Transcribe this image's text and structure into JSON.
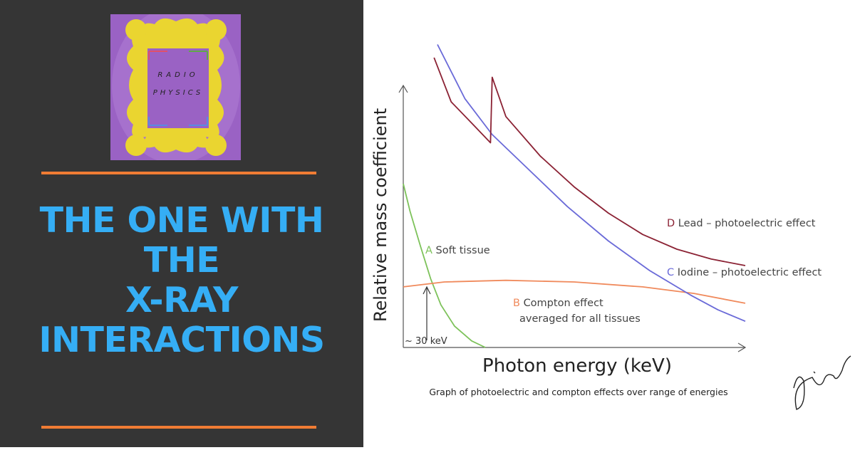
{
  "logo": {
    "line1": "RADIO",
    "line2": "PHYSICS",
    "frame_color": "#ead530",
    "background": "#9a62c4"
  },
  "headline": {
    "lines": [
      "THE ONE WITH",
      "THE",
      "X-RAY",
      "INTERACTIONS"
    ],
    "color": "#35aef5"
  },
  "accent_color": "#f07c34",
  "chart_data": {
    "type": "line",
    "title": "",
    "caption": "Graph of photoelectric and compton effects over range of energies",
    "xlabel": "Photon energy (keV)",
    "ylabel": "Relative mass coefficient",
    "grid": false,
    "annotation": "~ 30 keV",
    "series": [
      {
        "letter": "A",
        "name": "Soft tissue",
        "color": "#7dc25a",
        "points": [
          [
            0,
            1.0
          ],
          [
            0.02,
            0.83
          ],
          [
            0.05,
            0.62
          ],
          [
            0.08,
            0.42
          ],
          [
            0.11,
            0.26
          ],
          [
            0.15,
            0.13
          ],
          [
            0.2,
            0.04
          ],
          [
            0.24,
            0.0
          ]
        ]
      },
      {
        "letter": "B",
        "name": "Compton effect",
        "name2": "averaged for all tissues",
        "color": "#f08a5c",
        "points": [
          [
            0,
            0.37
          ],
          [
            0.12,
            0.4
          ],
          [
            0.3,
            0.41
          ],
          [
            0.5,
            0.4
          ],
          [
            0.7,
            0.37
          ],
          [
            0.85,
            0.33
          ],
          [
            1.0,
            0.27
          ]
        ]
      },
      {
        "letter": "C",
        "name": "Iodine – photoelectric effect",
        "color": "#6a6ad8",
        "points": [
          [
            0.1,
            1.85
          ],
          [
            0.18,
            1.52
          ],
          [
            0.26,
            1.3
          ],
          [
            0.36,
            1.1
          ],
          [
            0.48,
            0.86
          ],
          [
            0.6,
            0.65
          ],
          [
            0.72,
            0.47
          ],
          [
            0.84,
            0.32
          ],
          [
            0.92,
            0.23
          ],
          [
            1.0,
            0.16
          ]
        ]
      },
      {
        "letter": "D",
        "name": "Lead – photoelectric effect",
        "color": "#8b2234",
        "points": [
          [
            0.09,
            1.77
          ],
          [
            0.14,
            1.5
          ],
          [
            0.2,
            1.37
          ],
          [
            0.255,
            1.25
          ],
          [
            0.26,
            1.65
          ],
          [
            0.3,
            1.41
          ],
          [
            0.4,
            1.17
          ],
          [
            0.5,
            0.98
          ],
          [
            0.6,
            0.82
          ],
          [
            0.7,
            0.69
          ],
          [
            0.8,
            0.6
          ],
          [
            0.9,
            0.54
          ],
          [
            1.0,
            0.5
          ]
        ]
      }
    ]
  },
  "signature": "Dileep"
}
